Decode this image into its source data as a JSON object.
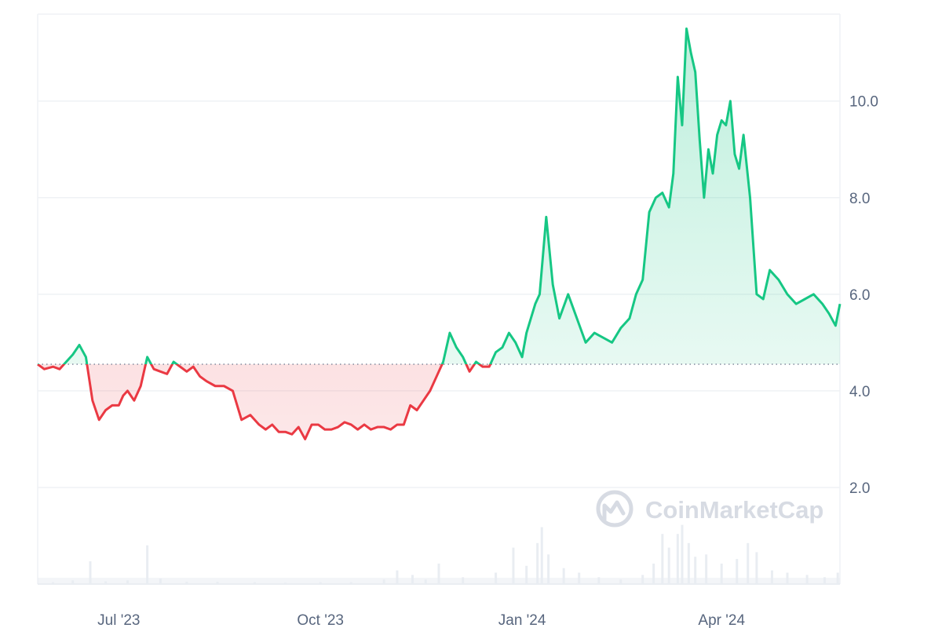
{
  "chart_data": {
    "type": "area",
    "title": "",
    "xlabel": "",
    "ylabel": "",
    "ylim": [
      0,
      11.8
    ],
    "xlim": [
      "2023-05-25",
      "2024-05-25"
    ],
    "y_ticks": [
      {
        "value": 2.0,
        "label": "2.0"
      },
      {
        "value": 4.0,
        "label": "4.0"
      },
      {
        "value": 6.0,
        "label": "6.0"
      },
      {
        "value": 8.0,
        "label": "8.0"
      },
      {
        "value": 10.0,
        "label": "10.0"
      }
    ],
    "x_ticks": [
      {
        "date": "2023-07-01",
        "label": "Jul '23"
      },
      {
        "date": "2023-10-01",
        "label": "Oct '23"
      },
      {
        "date": "2024-01-01",
        "label": "Jan '24"
      },
      {
        "date": "2024-04-01",
        "label": "Apr '24"
      }
    ],
    "baseline": 4.55,
    "grid": true,
    "legend": "none",
    "colors": {
      "above": "#16c784",
      "below": "#ea3943",
      "above_fill": "#16c784",
      "below_fill": "#ea3943",
      "grid": "#eff2f5",
      "baseline": "#808a9d",
      "volume": "#e9edf2"
    },
    "series": [
      {
        "x": [
          "2023-05-25",
          "2023-05-28",
          "2023-06-01",
          "2023-06-04",
          "2023-06-07",
          "2023-06-10",
          "2023-06-13",
          "2023-06-16",
          "2023-06-19",
          "2023-06-22",
          "2023-06-25",
          "2023-06-28",
          "2023-07-01",
          "2023-07-03",
          "2023-07-05",
          "2023-07-08",
          "2023-07-11",
          "2023-07-14",
          "2023-07-17",
          "2023-07-20",
          "2023-07-23",
          "2023-07-26",
          "2023-07-29",
          "2023-08-01",
          "2023-08-04",
          "2023-08-07",
          "2023-08-10",
          "2023-08-14",
          "2023-08-18",
          "2023-08-22",
          "2023-08-26",
          "2023-08-30",
          "2023-09-03",
          "2023-09-06",
          "2023-09-09",
          "2023-09-12",
          "2023-09-15",
          "2023-09-18",
          "2023-09-21",
          "2023-09-24",
          "2023-09-27",
          "2023-09-30",
          "2023-10-03",
          "2023-10-06",
          "2023-10-09",
          "2023-10-12",
          "2023-10-15",
          "2023-10-18",
          "2023-10-21",
          "2023-10-24",
          "2023-10-27",
          "2023-10-30",
          "2023-11-02",
          "2023-11-05",
          "2023-11-08",
          "2023-11-11",
          "2023-11-14",
          "2023-11-17",
          "2023-11-20",
          "2023-11-23",
          "2023-11-26",
          "2023-11-29",
          "2023-12-02",
          "2023-12-05",
          "2023-12-08",
          "2023-12-11",
          "2023-12-14",
          "2023-12-17",
          "2023-12-20",
          "2023-12-23",
          "2023-12-26",
          "2023-12-29",
          "2024-01-01",
          "2024-01-03",
          "2024-01-05",
          "2024-01-07",
          "2024-01-09",
          "2024-01-12",
          "2024-01-15",
          "2024-01-18",
          "2024-01-22",
          "2024-01-26",
          "2024-01-30",
          "2024-02-03",
          "2024-02-07",
          "2024-02-11",
          "2024-02-15",
          "2024-02-19",
          "2024-02-22",
          "2024-02-25",
          "2024-02-28",
          "2024-03-02",
          "2024-03-05",
          "2024-03-08",
          "2024-03-10",
          "2024-03-12",
          "2024-03-14",
          "2024-03-16",
          "2024-03-18",
          "2024-03-20",
          "2024-03-22",
          "2024-03-24",
          "2024-03-26",
          "2024-03-28",
          "2024-03-30",
          "2024-04-01",
          "2024-04-03",
          "2024-04-05",
          "2024-04-07",
          "2024-04-09",
          "2024-04-11",
          "2024-04-14",
          "2024-04-17",
          "2024-04-20",
          "2024-04-23",
          "2024-04-27",
          "2024-05-01",
          "2024-05-05",
          "2024-05-09",
          "2024-05-13",
          "2024-05-17",
          "2024-05-20",
          "2024-05-23",
          "2024-05-25"
        ],
        "y": [
          4.55,
          4.45,
          4.5,
          4.45,
          4.6,
          4.75,
          4.95,
          4.7,
          3.8,
          3.4,
          3.6,
          3.7,
          3.7,
          3.9,
          4.0,
          3.8,
          4.1,
          4.7,
          4.45,
          4.4,
          4.35,
          4.6,
          4.5,
          4.4,
          4.5,
          4.3,
          4.2,
          4.1,
          4.1,
          4.0,
          3.4,
          3.5,
          3.3,
          3.2,
          3.3,
          3.15,
          3.15,
          3.1,
          3.25,
          3.0,
          3.3,
          3.3,
          3.2,
          3.2,
          3.25,
          3.35,
          3.3,
          3.2,
          3.3,
          3.2,
          3.25,
          3.25,
          3.2,
          3.3,
          3.3,
          3.7,
          3.6,
          3.8,
          4.0,
          4.3,
          4.6,
          5.2,
          4.9,
          4.7,
          4.4,
          4.6,
          4.5,
          4.5,
          4.8,
          4.9,
          5.2,
          5.0,
          4.7,
          5.2,
          5.5,
          5.8,
          6.0,
          7.6,
          6.2,
          5.5,
          6.0,
          5.5,
          5.0,
          5.2,
          5.1,
          5.0,
          5.3,
          5.5,
          6.0,
          6.3,
          7.7,
          8.0,
          8.1,
          7.8,
          8.5,
          10.5,
          9.5,
          11.5,
          11.0,
          10.6,
          9.2,
          8.0,
          9.0,
          8.5,
          9.3,
          9.6,
          9.5,
          10.0,
          8.9,
          8.6,
          9.3,
          8.0,
          6.0,
          5.9,
          6.5,
          6.3,
          6.0,
          5.8,
          5.9,
          6.0,
          5.8,
          5.6,
          5.35,
          5.8
        ]
      }
    ],
    "volume": [
      {
        "x": "2023-06-01",
        "v": 0.04
      },
      {
        "x": "2023-06-10",
        "v": 0.08
      },
      {
        "x": "2023-06-18",
        "v": 0.5
      },
      {
        "x": "2023-06-25",
        "v": 0.06
      },
      {
        "x": "2023-07-05",
        "v": 0.08
      },
      {
        "x": "2023-07-14",
        "v": 0.85
      },
      {
        "x": "2023-07-20",
        "v": 0.12
      },
      {
        "x": "2023-08-01",
        "v": 0.05
      },
      {
        "x": "2023-08-15",
        "v": 0.05
      },
      {
        "x": "2023-09-01",
        "v": 0.04
      },
      {
        "x": "2023-09-15",
        "v": 0.03
      },
      {
        "x": "2023-10-01",
        "v": 0.04
      },
      {
        "x": "2023-10-15",
        "v": 0.04
      },
      {
        "x": "2023-10-30",
        "v": 0.1
      },
      {
        "x": "2023-11-05",
        "v": 0.3
      },
      {
        "x": "2023-11-12",
        "v": 0.2
      },
      {
        "x": "2023-11-18",
        "v": 0.1
      },
      {
        "x": "2023-11-24",
        "v": 0.45
      },
      {
        "x": "2023-12-05",
        "v": 0.15
      },
      {
        "x": "2023-12-20",
        "v": 0.25
      },
      {
        "x": "2023-12-28",
        "v": 0.8
      },
      {
        "x": "2024-01-03",
        "v": 0.4
      },
      {
        "x": "2024-01-08",
        "v": 0.9
      },
      {
        "x": "2024-01-10",
        "v": 1.25
      },
      {
        "x": "2024-01-13",
        "v": 0.65
      },
      {
        "x": "2024-01-20",
        "v": 0.35
      },
      {
        "x": "2024-01-27",
        "v": 0.25
      },
      {
        "x": "2024-02-05",
        "v": 0.15
      },
      {
        "x": "2024-02-15",
        "v": 0.1
      },
      {
        "x": "2024-02-25",
        "v": 0.2
      },
      {
        "x": "2024-03-01",
        "v": 0.45
      },
      {
        "x": "2024-03-05",
        "v": 1.1
      },
      {
        "x": "2024-03-08",
        "v": 0.8
      },
      {
        "x": "2024-03-12",
        "v": 1.1
      },
      {
        "x": "2024-03-14",
        "v": 1.3
      },
      {
        "x": "2024-03-17",
        "v": 0.9
      },
      {
        "x": "2024-03-20",
        "v": 0.6
      },
      {
        "x": "2024-03-25",
        "v": 0.65
      },
      {
        "x": "2024-04-01",
        "v": 0.45
      },
      {
        "x": "2024-04-08",
        "v": 0.55
      },
      {
        "x": "2024-04-13",
        "v": 0.9
      },
      {
        "x": "2024-04-17",
        "v": 0.7
      },
      {
        "x": "2024-04-24",
        "v": 0.3
      },
      {
        "x": "2024-05-01",
        "v": 0.25
      },
      {
        "x": "2024-05-10",
        "v": 0.2
      },
      {
        "x": "2024-05-18",
        "v": 0.15
      },
      {
        "x": "2024-05-24",
        "v": 0.25
      }
    ]
  },
  "watermark": {
    "text": "CoinMarketCap",
    "icon": "coinmarketcap-logo-icon"
  }
}
